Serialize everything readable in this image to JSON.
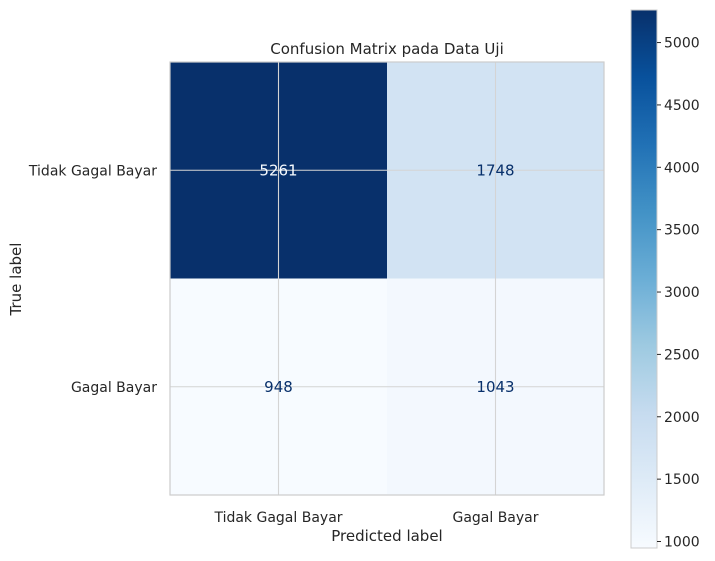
{
  "chart_data": {
    "type": "heatmap",
    "title": "Confusion Matrix pada Data Uji",
    "xlabel": "Predicted label",
    "ylabel": "True label",
    "x_categories": [
      "Tidak Gagal Bayar",
      "Gagal Bayar"
    ],
    "y_categories": [
      "Tidak Gagal Bayar",
      "Gagal Bayar"
    ],
    "values": [
      [
        5261,
        1748
      ],
      [
        948,
        1043
      ]
    ],
    "colormap": "Blues",
    "colorbar": {
      "range": [
        948,
        5261
      ],
      "ticks": [
        1000,
        1500,
        2000,
        2500,
        3000,
        3500,
        4000,
        4500,
        5000
      ]
    },
    "grid": true
  }
}
